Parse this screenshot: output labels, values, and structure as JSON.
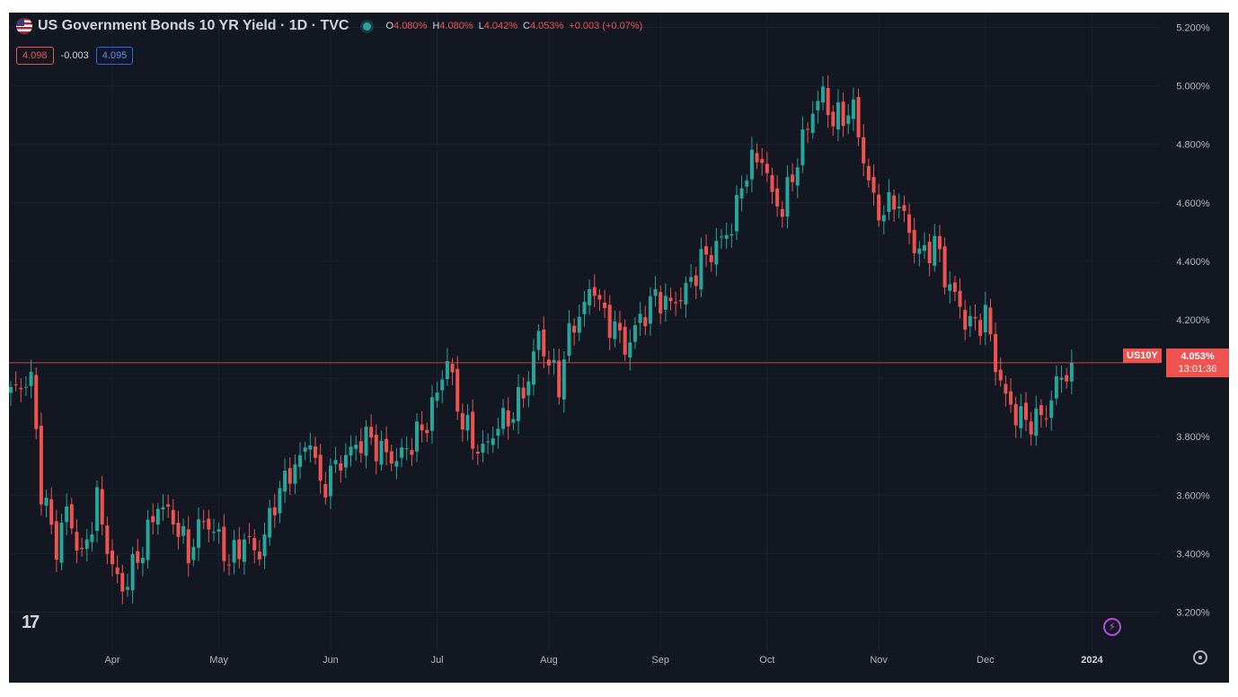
{
  "header": {
    "title": "US Government Bonds 10 YR Yield · 1D · TVC",
    "open_label": "O",
    "open": "4.080%",
    "high_label": "H",
    "high": "4.080%",
    "low_label": "L",
    "low": "4.042%",
    "close_label": "C",
    "close": "4.053%",
    "change": "+0.003 (+0.07%)",
    "sell": "4.098",
    "spread": "-0.003",
    "buy": "4.095"
  },
  "price_tag": {
    "symbol": "US10Y",
    "price": "4.053%",
    "countdown": "13:01:36"
  },
  "colors": {
    "up": "#26a69a",
    "down": "#ef5350",
    "background": "#131722",
    "grid": "#1e222d",
    "text": "#b2b5be"
  },
  "icons": {
    "logo": "tradingview-logo",
    "bolt": "lightning-icon",
    "settings": "gear-icon"
  },
  "logo_text": "17",
  "chart_data": {
    "type": "candlestick",
    "title": "US Government Bonds 10 YR Yield · 1D · TVC",
    "ylim": [
      3.1,
      5.22
    ],
    "y_ticks": [
      3.2,
      3.4,
      3.6,
      3.8,
      4.0,
      4.2,
      4.4,
      4.6,
      4.8,
      5.0,
      5.2
    ],
    "y_tick_labels": [
      "3.200%",
      "3.400%",
      "3.600%",
      "3.800%",
      "",
      "4.200%",
      "4.400%",
      "4.600%",
      "4.800%",
      "5.000%",
      "5.200%"
    ],
    "x_ticks": [
      {
        "label": "Apr",
        "index": 20
      },
      {
        "label": "May",
        "index": 41
      },
      {
        "label": "Jun",
        "index": 63
      },
      {
        "label": "Jul",
        "index": 84
      },
      {
        "label": "Aug",
        "index": 106
      },
      {
        "label": "Sep",
        "index": 128
      },
      {
        "label": "Oct",
        "index": 149
      },
      {
        "label": "Nov",
        "index": 171
      },
      {
        "label": "Dec",
        "index": 192
      },
      {
        "label": "2024",
        "index": 213
      }
    ],
    "last_price": 4.053,
    "anchors": [
      [
        0,
        3.95
      ],
      [
        4,
        4.0
      ],
      [
        6,
        3.62
      ],
      [
        9,
        3.42
      ],
      [
        11,
        3.55
      ],
      [
        14,
        3.38
      ],
      [
        17,
        3.58
      ],
      [
        20,
        3.35
      ],
      [
        22,
        3.28
      ],
      [
        26,
        3.42
      ],
      [
        29,
        3.57
      ],
      [
        32,
        3.52
      ],
      [
        35,
        3.4
      ],
      [
        38,
        3.52
      ],
      [
        41,
        3.45
      ],
      [
        43,
        3.37
      ],
      [
        46,
        3.45
      ],
      [
        49,
        3.4
      ],
      [
        52,
        3.58
      ],
      [
        55,
        3.68
      ],
      [
        57,
        3.72
      ],
      [
        59,
        3.8
      ],
      [
        61,
        3.62
      ],
      [
        64,
        3.7
      ],
      [
        67,
        3.75
      ],
      [
        70,
        3.8
      ],
      [
        73,
        3.75
      ],
      [
        76,
        3.72
      ],
      [
        79,
        3.78
      ],
      [
        82,
        3.85
      ],
      [
        84,
        3.95
      ],
      [
        86,
        4.07
      ],
      [
        88,
        3.9
      ],
      [
        91,
        3.78
      ],
      [
        93,
        3.75
      ],
      [
        96,
        3.84
      ],
      [
        99,
        3.88
      ],
      [
        102,
        4.0
      ],
      [
        104,
        4.15
      ],
      [
        106,
        4.05
      ],
      [
        108,
        3.98
      ],
      [
        110,
        4.15
      ],
      [
        113,
        4.25
      ],
      [
        115,
        4.32
      ],
      [
        117,
        4.2
      ],
      [
        119,
        4.18
      ],
      [
        121,
        4.1
      ],
      [
        124,
        4.2
      ],
      [
        127,
        4.28
      ],
      [
        130,
        4.25
      ],
      [
        133,
        4.3
      ],
      [
        136,
        4.4
      ],
      [
        139,
        4.45
      ],
      [
        142,
        4.52
      ],
      [
        145,
        4.72
      ],
      [
        148,
        4.76
      ],
      [
        150,
        4.62
      ],
      [
        152,
        4.58
      ],
      [
        155,
        4.75
      ],
      [
        158,
        4.92
      ],
      [
        160,
        4.97
      ],
      [
        162,
        4.88
      ],
      [
        164,
        4.9
      ],
      [
        166,
        4.92
      ],
      [
        168,
        4.75
      ],
      [
        170,
        4.6
      ],
      [
        172,
        4.56
      ],
      [
        174,
        4.62
      ],
      [
        176,
        4.55
      ],
      [
        178,
        4.45
      ],
      [
        180,
        4.42
      ],
      [
        182,
        4.47
      ],
      [
        184,
        4.35
      ],
      [
        186,
        4.28
      ],
      [
        188,
        4.2
      ],
      [
        190,
        4.18
      ],
      [
        192,
        4.22
      ],
      [
        194,
        4.05
      ],
      [
        196,
        3.93
      ],
      [
        198,
        3.88
      ],
      [
        200,
        3.85
      ],
      [
        202,
        3.86
      ],
      [
        204,
        3.88
      ],
      [
        206,
        3.98
      ],
      [
        208,
        4.03
      ],
      [
        209,
        4.053
      ]
    ]
  }
}
